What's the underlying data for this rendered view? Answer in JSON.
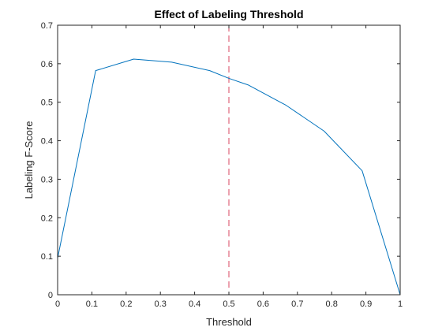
{
  "chart_data": {
    "type": "line",
    "title": "Effect of Labeling Threshold",
    "xlabel": "Threshold",
    "ylabel": "Labeling F-Score",
    "xlim": [
      0,
      1
    ],
    "ylim": [
      0,
      0.7
    ],
    "x_ticks": [
      "0",
      "0.1",
      "0.2",
      "0.3",
      "0.4",
      "0.5",
      "0.6",
      "0.7",
      "0.8",
      "0.9",
      "1"
    ],
    "y_ticks": [
      "0",
      "0.1",
      "0.2",
      "0.3",
      "0.4",
      "0.5",
      "0.6",
      "0.7"
    ],
    "grid": false,
    "series": [
      {
        "x": [
          0,
          0.111,
          0.222,
          0.333,
          0.444,
          0.5,
          0.556,
          0.667,
          0.778,
          0.889,
          1.0
        ],
        "y": [
          0.095,
          0.582,
          0.612,
          0.604,
          0.582,
          0.562,
          0.545,
          0.492,
          0.425,
          0.322,
          0.0
        ],
        "color": "#0072bd"
      }
    ],
    "reference_line": {
      "x": 0.5,
      "orientation": "vertical",
      "style": "dashed",
      "color": "#d9455f"
    }
  }
}
